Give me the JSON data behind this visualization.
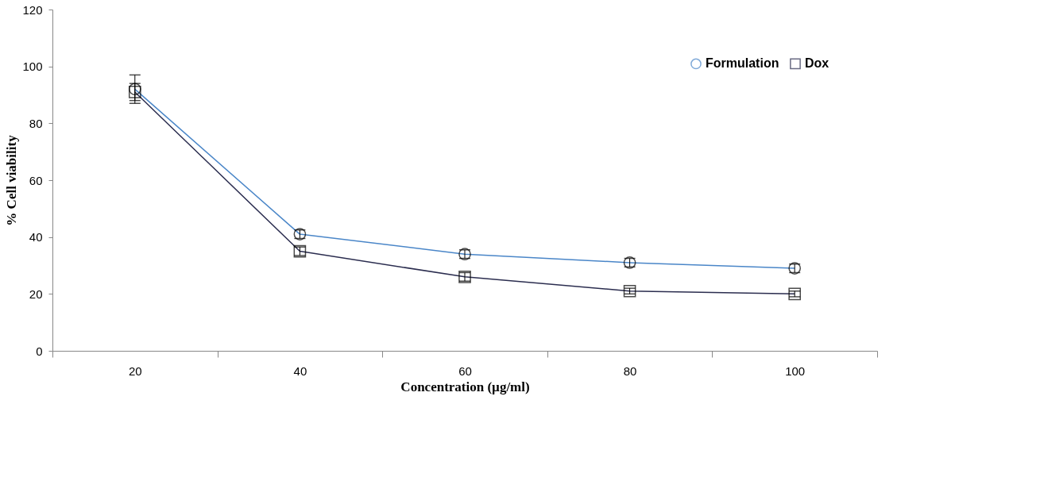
{
  "chart_data": {
    "type": "line",
    "xlabel": "Concentration (µg/ml)",
    "ylabel": "% Cell viability",
    "categories": [
      "20",
      "40",
      "60",
      "80",
      "100"
    ],
    "series": [
      {
        "name": "Formulation",
        "color": "#4a86c8",
        "marker": "circle",
        "values": [
          92,
          41,
          34,
          31,
          29
        ],
        "errors": [
          5,
          1.5,
          1.5,
          1.5,
          1.5
        ]
      },
      {
        "name": "Dox",
        "color": "#2b2d4f",
        "marker": "square",
        "values": [
          91,
          35,
          26,
          21,
          20
        ],
        "errors": [
          3,
          1.5,
          1.5,
          1,
          1
        ]
      }
    ],
    "ylim": [
      0,
      120
    ],
    "yticks": [
      0,
      20,
      40,
      60,
      80,
      100,
      120
    ],
    "grid": false,
    "legend": "top right",
    "line_style": "solid"
  }
}
